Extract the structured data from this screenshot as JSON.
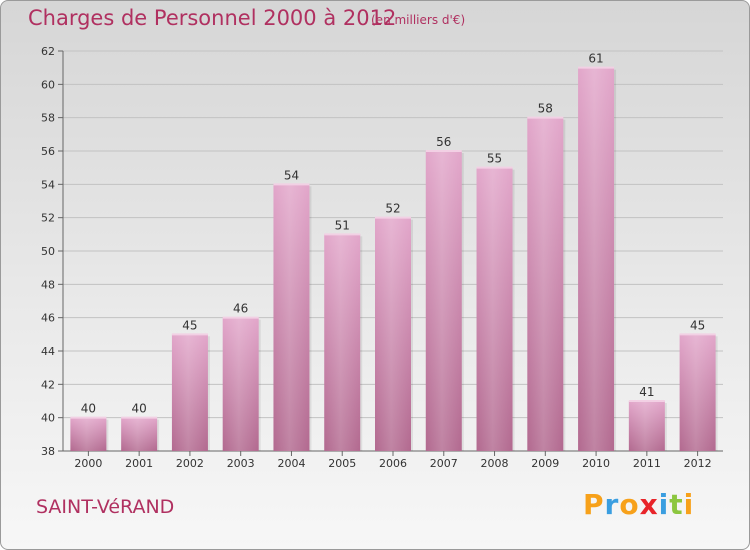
{
  "title": "Charges de Personnel 2000 à 2012",
  "subtitle": "(en milliers d'€)",
  "town": "SAINT-VéRAND",
  "logo": {
    "letters": [
      "P",
      "r",
      "o",
      "x",
      "i",
      "t",
      "i"
    ],
    "colors": [
      "#f7a11a",
      "#3a9ee0",
      "#f7a11a",
      "#e8242a",
      "#3a9ee0",
      "#8cc63f",
      "#f7a11a"
    ]
  },
  "colors": {
    "bar": "#d68fb8",
    "text_accent": "#b03060"
  },
  "chart_data": {
    "type": "bar",
    "title": "Charges de Personnel 2000 à 2012",
    "subtitle": "(en milliers d'€)",
    "categories": [
      "2000",
      "2001",
      "2002",
      "2003",
      "2004",
      "2005",
      "2006",
      "2007",
      "2008",
      "2009",
      "2010",
      "2011",
      "2012"
    ],
    "values": [
      40,
      40,
      45,
      46,
      54,
      51,
      52,
      56,
      55,
      58,
      61,
      41,
      45
    ],
    "yticks": [
      38,
      40,
      42,
      44,
      46,
      48,
      50,
      52,
      54,
      56,
      58,
      60,
      62
    ],
    "ylim": [
      38,
      62
    ],
    "grid": true
  }
}
